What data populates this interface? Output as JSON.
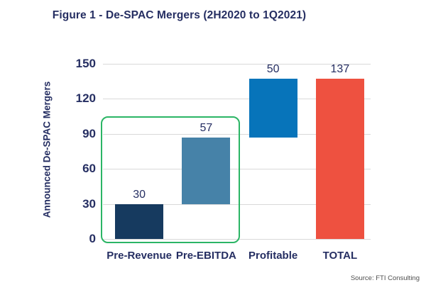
{
  "title": "Figure 1 - De-SPAC Mergers (2H2020 to 1Q2021)",
  "y_axis_label": "Announced De-SPAC Mergers",
  "source": "Source: FTI Consulting",
  "colors": {
    "text_navy": "#252e62",
    "gridline": "#d9d9d9",
    "highlight_box": "#2bb565",
    "source_text": "#4f4f4f"
  },
  "chart_data": {
    "type": "bar",
    "subtype": "waterfall",
    "title": "Figure 1 - De-SPAC Mergers (2H2020 to 1Q2021)",
    "xlabel": "",
    "ylabel": "Announced De-SPAC Mergers",
    "ylim": [
      0,
      150
    ],
    "yticks": [
      0,
      30,
      60,
      90,
      120,
      150
    ],
    "grid": "horizontal",
    "legend": "none",
    "categories": [
      "Pre-Revenue",
      "Pre-EBITDA",
      "Profitable",
      "TOTAL"
    ],
    "series": [
      {
        "name": "Announced De-SPAC Mergers",
        "values": [
          30,
          57,
          50,
          137
        ]
      }
    ],
    "segment_starts": [
      0,
      30,
      87,
      0
    ],
    "segment_ends": [
      30,
      87,
      137,
      137
    ],
    "data_labels": [
      "30",
      "57",
      "50",
      "137"
    ],
    "bar_colors": [
      "#163a5f",
      "#4682a8",
      "#0774ba",
      "#ee5140"
    ],
    "annotation": {
      "type": "highlight-box",
      "covers": [
        "Pre-Revenue",
        "Pre-EBITDA"
      ],
      "color": "#2bb565"
    }
  }
}
